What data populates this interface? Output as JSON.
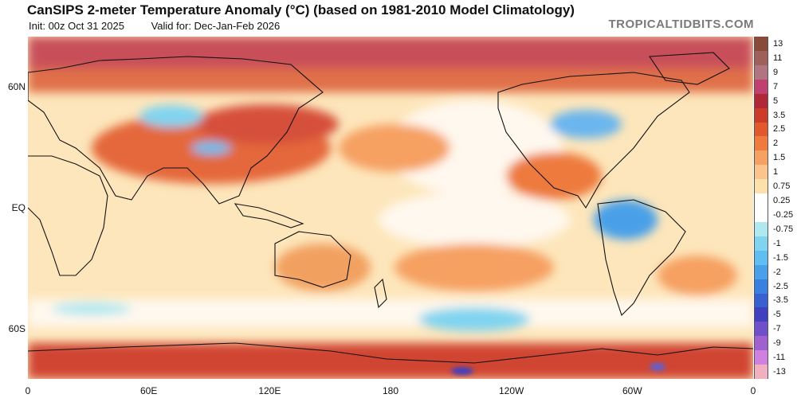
{
  "header": {
    "title": "CanSIPS 2-meter Temperature Anomaly (°C) (based on 1981-2010 Model Climatology)",
    "init": "Init: 00z Oct 31 2025",
    "valid": "Valid for: Dec-Jan-Feb 2026",
    "brand": "TROPICALTIDBITS.COM"
  },
  "map": {
    "lat_labels": [
      {
        "label": "60N",
        "lat": 60
      },
      {
        "label": "EQ",
        "lat": 0
      },
      {
        "label": "60S",
        "lat": -60
      }
    ],
    "lon_labels": [
      {
        "label": "0",
        "lon": 0
      },
      {
        "label": "60E",
        "lon": 60
      },
      {
        "label": "120E",
        "lon": 120
      },
      {
        "label": "180",
        "lon": 180
      },
      {
        "label": "120W",
        "lon": 240
      },
      {
        "label": "60W",
        "lon": 300
      },
      {
        "label": "0",
        "lon": 360
      }
    ],
    "lat_range": [
      -85,
      85
    ],
    "lon_range": [
      0,
      360
    ],
    "background_color": "#fdf0d2"
  },
  "colorbar": {
    "levels": [
      {
        "label": "13",
        "color": "#8a4a3a"
      },
      {
        "label": "11",
        "color": "#a0605a"
      },
      {
        "label": "9",
        "color": "#b07580"
      },
      {
        "label": "7",
        "color": "#c04070"
      },
      {
        "label": "5",
        "color": "#b02838"
      },
      {
        "label": "3.5",
        "color": "#cc3a2a"
      },
      {
        "label": "2.5",
        "color": "#e0582c"
      },
      {
        "label": "2",
        "color": "#ee7a3e"
      },
      {
        "label": "1.5",
        "color": "#f6a062"
      },
      {
        "label": "1",
        "color": "#fbc48a"
      },
      {
        "label": "0.75",
        "color": "#fde0aa"
      },
      {
        "label": "0.25",
        "color": "#ffffff"
      },
      {
        "label": "-0.25",
        "color": "#ffffff"
      },
      {
        "label": "-0.75",
        "color": "#b0e8f0"
      },
      {
        "label": "-1",
        "color": "#80d4f0"
      },
      {
        "label": "-1.5",
        "color": "#60bff0"
      },
      {
        "label": "-2",
        "color": "#4aa0e8"
      },
      {
        "label": "-2.5",
        "color": "#3a80e0"
      },
      {
        "label": "-3.5",
        "color": "#3860d0"
      },
      {
        "label": "-5",
        "color": "#4040c0"
      },
      {
        "label": "-7",
        "color": "#7050c8"
      },
      {
        "label": "-9",
        "color": "#a060d0"
      },
      {
        "label": "-11",
        "color": "#d080e0"
      },
      {
        "label": "-13",
        "color": "#f0b0c0"
      }
    ]
  }
}
